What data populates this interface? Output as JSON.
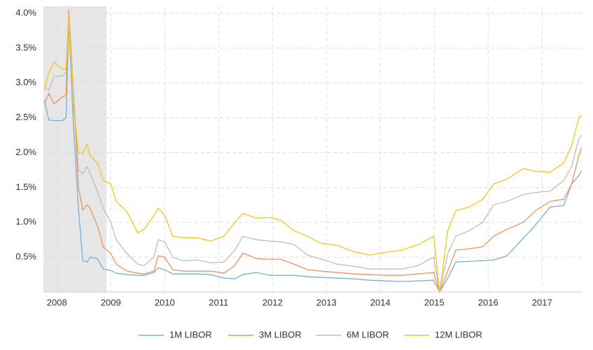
{
  "chart_data": {
    "type": "line",
    "x": [
      2007.77,
      2007.85,
      2007.95,
      2008.1,
      2008.17,
      2008.22,
      2008.3,
      2008.4,
      2008.48,
      2008.56,
      2008.62,
      2008.75,
      2008.86,
      2009.0,
      2009.1,
      2009.3,
      2009.5,
      2009.62,
      2009.8,
      2009.88,
      2010.0,
      2010.15,
      2010.35,
      2010.6,
      2010.85,
      2011.1,
      2011.3,
      2011.45,
      2011.7,
      2011.95,
      2012.15,
      2012.4,
      2012.65,
      2012.9,
      2013.2,
      2013.5,
      2013.8,
      2014.1,
      2014.4,
      2014.7,
      2014.99,
      2015.1,
      2015.25,
      2015.4,
      2015.65,
      2015.9,
      2016.1,
      2016.35,
      2016.65,
      2016.9,
      2017.15,
      2017.4,
      2017.55,
      2017.68,
      2017.73
    ],
    "series": [
      {
        "name": "1M LIBOR",
        "color": "#7aaedb",
        "values": [
          2.75,
          2.47,
          2.46,
          2.46,
          2.5,
          3.9,
          2.5,
          1.2,
          0.45,
          0.43,
          0.5,
          0.48,
          0.33,
          0.31,
          0.27,
          0.25,
          0.24,
          0.24,
          0.28,
          0.35,
          0.32,
          0.26,
          0.26,
          0.26,
          0.25,
          0.2,
          0.19,
          0.25,
          0.28,
          0.24,
          0.24,
          0.24,
          0.22,
          0.21,
          0.2,
          0.19,
          0.17,
          0.16,
          0.15,
          0.16,
          0.17,
          0.0,
          0.2,
          0.43,
          0.44,
          0.45,
          0.46,
          0.52,
          0.77,
          0.98,
          1.22,
          1.24,
          1.55,
          1.67,
          1.74
        ]
      },
      {
        "name": "3M LIBOR",
        "color": "#f0935a",
        "values": [
          2.7,
          2.85,
          2.7,
          2.8,
          2.82,
          4.05,
          3.0,
          1.5,
          1.18,
          1.25,
          1.2,
          0.95,
          0.65,
          0.55,
          0.4,
          0.3,
          0.27,
          0.26,
          0.3,
          0.52,
          0.5,
          0.32,
          0.3,
          0.3,
          0.3,
          0.27,
          0.38,
          0.56,
          0.48,
          0.47,
          0.47,
          0.4,
          0.32,
          0.3,
          0.28,
          0.26,
          0.25,
          0.24,
          0.24,
          0.26,
          0.28,
          0.0,
          0.3,
          0.6,
          0.62,
          0.65,
          0.8,
          0.9,
          1.0,
          1.18,
          1.3,
          1.33,
          1.55,
          1.95,
          2.07
        ]
      },
      {
        "name": "6M LIBOR",
        "color": "#bdbdbd",
        "values": [
          2.95,
          2.9,
          3.1,
          3.1,
          3.15,
          3.9,
          3.0,
          1.75,
          1.7,
          1.8,
          1.7,
          1.45,
          1.2,
          1.0,
          0.75,
          0.55,
          0.4,
          0.38,
          0.5,
          0.75,
          0.72,
          0.5,
          0.45,
          0.46,
          0.42,
          0.43,
          0.6,
          0.8,
          0.75,
          0.73,
          0.72,
          0.68,
          0.53,
          0.47,
          0.4,
          0.37,
          0.33,
          0.33,
          0.33,
          0.38,
          0.5,
          0.0,
          0.55,
          0.8,
          0.88,
          1.0,
          1.25,
          1.3,
          1.4,
          1.43,
          1.45,
          1.6,
          1.8,
          2.2,
          2.25
        ]
      },
      {
        "name": "12M LIBOR",
        "color": "#f5c518",
        "values": [
          2.9,
          3.15,
          3.3,
          3.2,
          3.2,
          4.0,
          2.7,
          2.0,
          1.98,
          2.12,
          1.95,
          1.85,
          1.6,
          1.55,
          1.3,
          1.15,
          0.85,
          0.9,
          1.1,
          1.2,
          1.1,
          0.8,
          0.78,
          0.78,
          0.73,
          0.8,
          1.0,
          1.13,
          1.06,
          1.07,
          1.03,
          0.88,
          0.8,
          0.7,
          0.67,
          0.58,
          0.53,
          0.57,
          0.6,
          0.68,
          0.8,
          0.0,
          0.88,
          1.17,
          1.22,
          1.33,
          1.55,
          1.62,
          1.77,
          1.73,
          1.72,
          1.85,
          2.1,
          2.5,
          2.53
        ]
      }
    ],
    "xlim": [
      2007.75,
      2017.75
    ],
    "xticks": [
      2008,
      2009,
      2010,
      2011,
      2012,
      2013,
      2014,
      2015,
      2016,
      2017
    ],
    "ylim": [
      0,
      4.1
    ],
    "yticks": [
      {
        "value": 0.5,
        "label": "0.5%"
      },
      {
        "value": 1.0,
        "label": "1.0%"
      },
      {
        "value": 1.5,
        "label": "1.5%"
      },
      {
        "value": 2.0,
        "label": "2.0%"
      },
      {
        "value": 2.5,
        "label": "2.5%"
      },
      {
        "value": 3.0,
        "label": "3.0%"
      },
      {
        "value": 3.5,
        "label": "3.5%"
      },
      {
        "value": 4.0,
        "label": "4.0%"
      }
    ],
    "shaded_range": [
      2007.75,
      2008.92
    ],
    "grid": true,
    "legend": "bottom"
  }
}
